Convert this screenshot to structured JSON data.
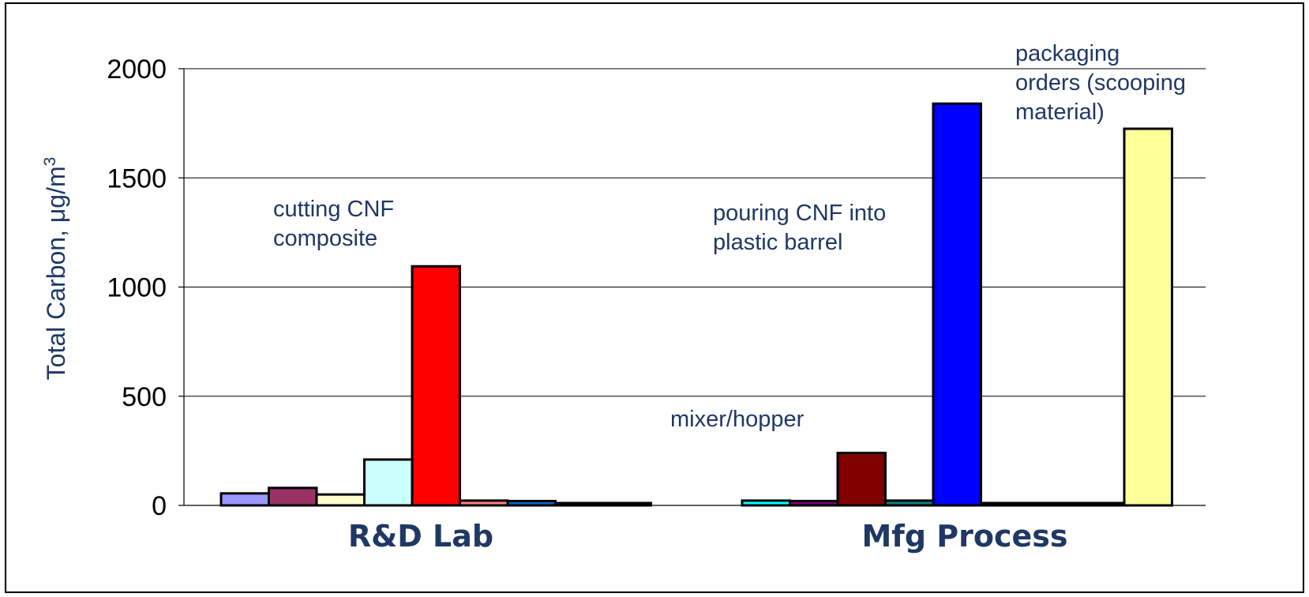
{
  "chart_data": {
    "type": "bar",
    "title": "",
    "ylabel": "Total Carbon, μg/m",
    "ylabel_superscript": "3",
    "ylim": [
      0,
      2000
    ],
    "yticks": [
      "0",
      "500",
      "1000",
      "1500",
      "2000"
    ],
    "grid": true,
    "legend": "none",
    "categories": [
      "R&D Lab",
      "Mfg Process"
    ],
    "groups": [
      {
        "name": "R&D Lab",
        "bars": [
          {
            "value": 55,
            "color": "#9999ff"
          },
          {
            "value": 80,
            "color": "#993366"
          },
          {
            "value": 50,
            "color": "#ffffcc"
          },
          {
            "value": 210,
            "color": "#ccffff"
          },
          {
            "value": 1095,
            "color": "#ff0000"
          },
          {
            "value": 22,
            "color": "#ff8080"
          },
          {
            "value": 20,
            "color": "#0066cc"
          },
          {
            "value": 8,
            "color": "#000080"
          },
          {
            "value": 8,
            "color": "#000080"
          }
        ]
      },
      {
        "name": "Mfg Process",
        "bars": [
          {
            "value": 22,
            "color": "#00ffff"
          },
          {
            "value": 20,
            "color": "#800080"
          },
          {
            "value": 240,
            "color": "#800000"
          },
          {
            "value": 22,
            "color": "#008080"
          },
          {
            "value": 1840,
            "color": "#0000ff"
          },
          {
            "value": 8,
            "color": "#000080"
          },
          {
            "value": 8,
            "color": "#000080"
          },
          {
            "value": 8,
            "color": "#000080"
          },
          {
            "value": 1725,
            "color": "#ffff99"
          }
        ]
      }
    ],
    "annotations": [
      {
        "lines": [
          "cutting CNF",
          "composite"
        ]
      },
      {
        "lines": [
          "mixer/hopper"
        ]
      },
      {
        "lines": [
          "pouring CNF into",
          "plastic barrel"
        ]
      },
      {
        "lines": [
          "packaging",
          "orders (scooping",
          "material)"
        ]
      }
    ]
  }
}
